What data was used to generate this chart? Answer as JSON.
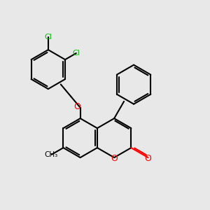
{
  "bg_color": "#e8e8e8",
  "bond_color": "#000000",
  "o_color": "#ff0000",
  "cl_color": "#00bb00",
  "line_width": 1.5,
  "figsize": [
    3.0,
    3.0
  ],
  "dpi": 100,
  "xlim": [
    0,
    10
  ],
  "ylim": [
    0,
    10
  ]
}
